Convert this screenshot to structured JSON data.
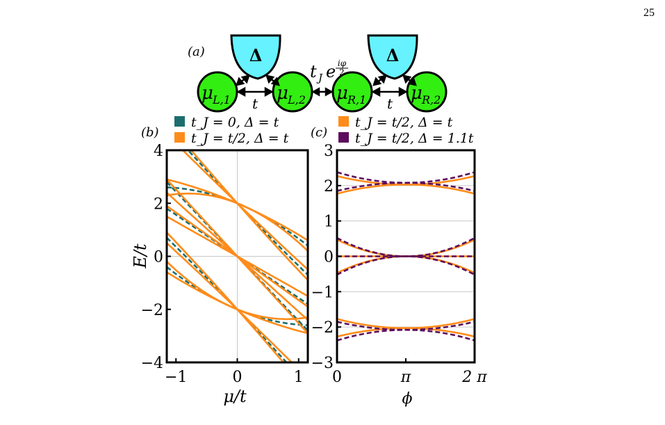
{
  "page_number": "25",
  "panel_labels": {
    "a": "(a)",
    "b": "(b)",
    "c": "(c)"
  },
  "schematic": {
    "superconductor_label": "Δ",
    "dots": [
      {
        "main": "μ",
        "sub": "L,1"
      },
      {
        "main": "μ",
        "sub": "L,2"
      },
      {
        "main": "μ",
        "sub": "R,1"
      },
      {
        "main": "μ",
        "sub": "R,2"
      }
    ],
    "hopping_label": "t",
    "junction_label": {
      "base": "t",
      "sub": "J",
      "exp_base": "e",
      "exp_num": "iφ",
      "exp_den": "2"
    },
    "colors": {
      "superconductor": "#66f2ff",
      "dot": "#33ee11"
    }
  },
  "legends": {
    "b": [
      {
        "text": "t_J = 0, Δ = t",
        "color": "#1c6e6e",
        "style": "dashed"
      },
      {
        "text": "t_J = t/2, Δ = t",
        "color": "#ff8c1a",
        "style": "solid"
      }
    ],
    "c": [
      {
        "text": "t_J = t/2, Δ = t",
        "color": "#ff8c1a",
        "style": "solid"
      },
      {
        "text": "t_J = t/2, Δ = 1.1t",
        "color": "#5c0c5c",
        "style": "dashed"
      }
    ]
  },
  "chart_data": [
    {
      "type": "line",
      "panel": "b",
      "xlabel": "μ/t",
      "ylabel": "E/t",
      "xlim": [
        -1.15,
        1.15
      ],
      "ylim": [
        -4,
        4
      ],
      "xticks": [
        -1,
        0,
        1
      ],
      "yticks": [
        -4,
        -2,
        0,
        2,
        4
      ],
      "grid": "zero-lines",
      "series": [
        {
          "name": "t_J = 0, Δ = t",
          "color": "#1c6e6e",
          "style": "dashed",
          "curves": [
            {
              "x": [
                -1.15,
                0,
                1.15
              ],
              "y": [
                4.9,
                2.0,
                -0.7
              ]
            },
            {
              "x": [
                -1.15,
                0,
                1.15
              ],
              "y": [
                2.6,
                2.0,
                0.4
              ]
            },
            {
              "x": [
                -1.15,
                0,
                1.15
              ],
              "y": [
                2.8,
                0.0,
                -2.8
              ]
            },
            {
              "x": [
                -1.15,
                0,
                1.15
              ],
              "y": [
                1.8,
                0.0,
                -1.8
              ]
            },
            {
              "x": [
                -1.15,
                0,
                1.15
              ],
              "y": [
                -0.4,
                -2.0,
                -2.6
              ]
            },
            {
              "x": [
                -1.15,
                0,
                1.15
              ],
              "y": [
                0.7,
                -2.0,
                -4.9
              ]
            }
          ]
        },
        {
          "name": "t_J = t/2, Δ = t",
          "color": "#ff8c1a",
          "style": "solid",
          "curves": [
            {
              "x": [
                -1.15,
                0,
                1.15
              ],
              "y": [
                5.1,
                2.0,
                -0.9
              ]
            },
            {
              "x": [
                -1.15,
                0,
                1.15
              ],
              "y": [
                4.6,
                2.0,
                -0.5
              ]
            },
            {
              "x": [
                -1.15,
                0,
                1.15
              ],
              "y": [
                2.9,
                2.0,
                0.6
              ]
            },
            {
              "x": [
                -1.15,
                0,
                1.15
              ],
              "y": [
                2.3,
                2.0,
                0.2
              ]
            },
            {
              "x": [
                -1.15,
                0,
                1.15
              ],
              "y": [
                2.9,
                0.0,
                -2.9
              ]
            },
            {
              "x": [
                -1.15,
                0,
                1.15
              ],
              "y": [
                2.4,
                0.0,
                -2.4
              ]
            },
            {
              "x": [
                -1.15,
                0,
                1.15
              ],
              "y": [
                1.9,
                0.0,
                -1.9
              ]
            },
            {
              "x": [
                -1.15,
                0,
                1.15
              ],
              "y": [
                1.5,
                0.0,
                -1.5
              ]
            },
            {
              "x": [
                -1.15,
                0,
                1.15
              ],
              "y": [
                -0.2,
                -2.0,
                -2.3
              ]
            },
            {
              "x": [
                -1.15,
                0,
                1.15
              ],
              "y": [
                -0.6,
                -2.0,
                -2.9
              ]
            },
            {
              "x": [
                -1.15,
                0,
                1.15
              ],
              "y": [
                0.5,
                -2.0,
                -4.6
              ]
            },
            {
              "x": [
                -1.15,
                0,
                1.15
              ],
              "y": [
                0.9,
                -2.0,
                -5.1
              ]
            }
          ]
        }
      ]
    },
    {
      "type": "line",
      "panel": "c",
      "xlabel": "ϕ",
      "ylabel": "",
      "xlim": [
        0,
        6.2832
      ],
      "ylim": [
        -3,
        3
      ],
      "xticks": [
        "0",
        "π",
        "2 π"
      ],
      "yticks": [
        -3,
        -2,
        -1,
        0,
        1,
        2,
        3
      ],
      "grid": "integer-gridlines",
      "series": [
        {
          "name": "t_J = t/2, Δ = t",
          "color": "#ff8c1a",
          "style": "solid",
          "curves": [
            {
              "x": [
                0,
                3.1416,
                6.2832
              ],
              "y": [
                2.27,
                2.03,
                2.27
              ]
            },
            {
              "x": [
                0,
                3.1416,
                6.2832
              ],
              "y": [
                1.77,
                2.03,
                1.77
              ]
            },
            {
              "x": [
                0,
                3.1416,
                6.2832
              ],
              "y": [
                0.47,
                0.0,
                0.47
              ]
            },
            {
              "x": [
                0,
                3.1416,
                6.2832
              ],
              "y": [
                -0.47,
                0.0,
                -0.47
              ]
            },
            {
              "x": [
                0,
                3.1416,
                6.2832
              ],
              "y": [
                0.0,
                0.0,
                0.0
              ]
            },
            {
              "x": [
                0,
                3.1416,
                6.2832
              ],
              "y": [
                -1.77,
                -2.03,
                -1.77
              ]
            },
            {
              "x": [
                0,
                3.1416,
                6.2832
              ],
              "y": [
                -2.27,
                -2.03,
                -2.27
              ]
            }
          ]
        },
        {
          "name": "t_J = t/2, Δ = 1.1t",
          "color": "#5c0c5c",
          "style": "dashed",
          "curves": [
            {
              "x": [
                0,
                3.1416,
                6.2832
              ],
              "y": [
                2.38,
                2.08,
                2.38
              ]
            },
            {
              "x": [
                0,
                3.1416,
                6.2832
              ],
              "y": [
                1.85,
                2.08,
                1.85
              ]
            },
            {
              "x": [
                0,
                3.1416,
                6.2832
              ],
              "y": [
                0.52,
                0.0,
                0.52
              ]
            },
            {
              "x": [
                0,
                3.1416,
                6.2832
              ],
              "y": [
                -0.52,
                0.0,
                -0.52
              ]
            },
            {
              "x": [
                0,
                3.1416,
                6.2832
              ],
              "y": [
                0.0,
                0.0,
                0.0
              ]
            },
            {
              "x": [
                0,
                3.1416,
                6.2832
              ],
              "y": [
                -1.85,
                -2.08,
                -1.85
              ]
            },
            {
              "x": [
                0,
                3.1416,
                6.2832
              ],
              "y": [
                -2.38,
                -2.08,
                -2.38
              ]
            }
          ]
        }
      ]
    }
  ]
}
